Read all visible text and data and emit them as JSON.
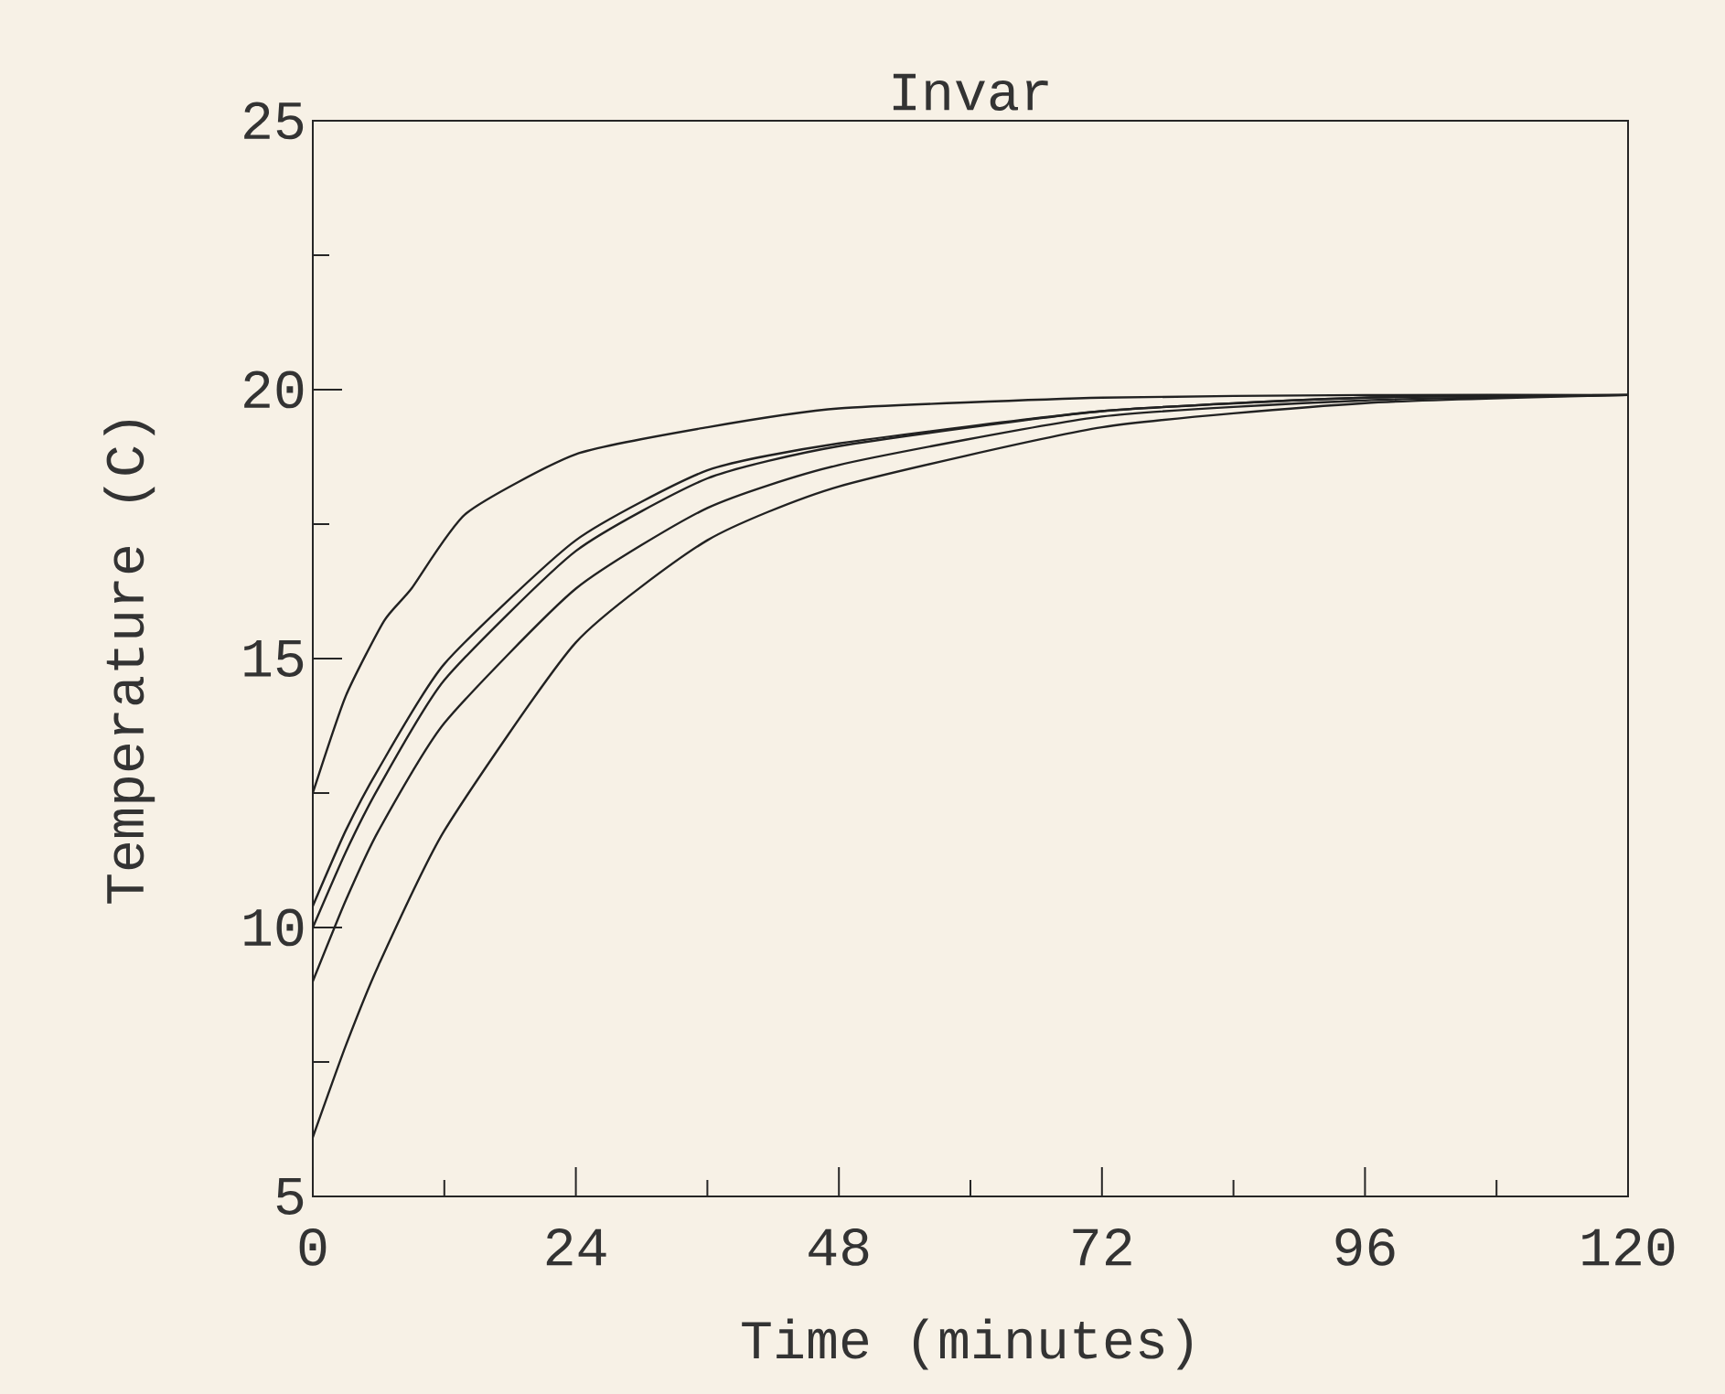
{
  "chart_data": {
    "type": "line",
    "title": "Invar",
    "xlabel": "Time (minutes)",
    "ylabel": "Temperature (C)",
    "xlim": [
      0,
      120
    ],
    "ylim": [
      5,
      25
    ],
    "xticks": [
      0,
      {
        "value": 12,
        "label": null
      },
      24,
      {
        "value": 36,
        "label": null
      },
      48,
      {
        "value": 60,
        "label": null
      },
      72,
      {
        "value": 84,
        "label": null
      },
      96,
      {
        "value": 108,
        "label": null
      },
      120
    ],
    "yticks": [
      5,
      {
        "value": 7.5,
        "label": null
      },
      10,
      {
        "value": 12.5,
        "label": null
      },
      15,
      {
        "value": 17.5,
        "label": null
      },
      20,
      {
        "value": 22.5,
        "label": null
      },
      25
    ],
    "grid": false,
    "marker": "none",
    "line_style": "solid",
    "series": [
      {
        "color": "#222222",
        "x": [
          0,
          3,
          6.5,
          9,
          14,
          24,
          36,
          48,
          72,
          96,
          120
        ],
        "values": [
          12.5,
          14.3,
          15.7,
          16.3,
          17.7,
          18.8,
          19.3,
          19.65,
          19.85,
          19.9,
          19.9
        ]
      },
      {
        "color": "#222222",
        "x": [
          0,
          3,
          6,
          12,
          24,
          36,
          48,
          72,
          96,
          120
        ],
        "values": [
          10.4,
          11.8,
          12.95,
          14.9,
          17.2,
          18.5,
          19.0,
          19.6,
          19.85,
          19.9
        ]
      },
      {
        "color": "#222222",
        "x": [
          0,
          3,
          6,
          12,
          24,
          36,
          48,
          72,
          96,
          120
        ],
        "values": [
          10.0,
          11.4,
          12.6,
          14.6,
          17.0,
          18.35,
          18.95,
          19.6,
          19.85,
          19.9
        ]
      },
      {
        "color": "#222222",
        "x": [
          0,
          3,
          6,
          12,
          24,
          36,
          48,
          72,
          96,
          120
        ],
        "values": [
          9.0,
          10.5,
          11.8,
          13.8,
          16.3,
          17.8,
          18.6,
          19.5,
          19.8,
          19.9
        ]
      },
      {
        "color": "#222222",
        "x": [
          0,
          3,
          6,
          12,
          24,
          36,
          48,
          72,
          96,
          120
        ],
        "values": [
          6.1,
          7.8,
          9.3,
          11.8,
          15.3,
          17.2,
          18.2,
          19.3,
          19.75,
          19.9
        ]
      }
    ]
  }
}
